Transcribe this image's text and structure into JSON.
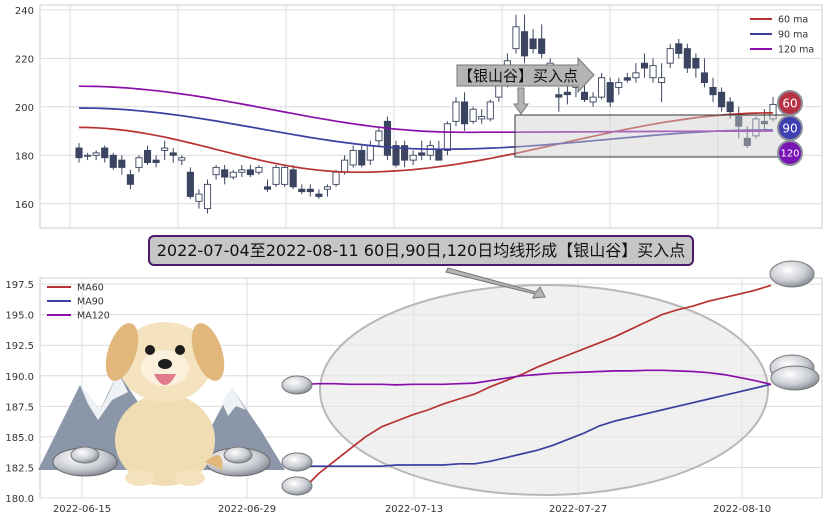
{
  "colors": {
    "ma60": "#b83232",
    "ma90": "#3a3fa0",
    "ma120": "#8a0fa8",
    "candle_up": "#ffffff",
    "candle_down": "#3b4460",
    "badge_ma60": "#b83246",
    "badge_ma90": "#3c3fb0",
    "badge_ma120": "#7a14b4"
  },
  "annotations": {
    "top_callout": "【银山谷】买入点",
    "title_banner": "2022-07-04至2022-08-11 60日,90日,120日均线形成【银山谷】买入点",
    "badges": [
      "60",
      "90",
      "120"
    ]
  },
  "chart_data": [
    {
      "type": "candlestick",
      "legend_position": "top-right",
      "grid": true,
      "ylim": [
        150,
        242
      ],
      "yticks": [
        160,
        180,
        200,
        220,
        240
      ],
      "legend": [
        "60 ma",
        "90 ma",
        "120 ma"
      ],
      "ohlc": [
        [
          183,
          185,
          177,
          179
        ],
        [
          180,
          181,
          178,
          180
        ],
        [
          180,
          182,
          178,
          181
        ],
        [
          183,
          184,
          177,
          179
        ],
        [
          180,
          181,
          174,
          175
        ],
        [
          178,
          180,
          172,
          175
        ],
        [
          172,
          174,
          166,
          168
        ],
        [
          175,
          180,
          173,
          179
        ],
        [
          182,
          184,
          176,
          177
        ],
        [
          178,
          180,
          175,
          177
        ],
        [
          182,
          186,
          178,
          183
        ],
        [
          181,
          183,
          177,
          180
        ],
        [
          178,
          180,
          176,
          179
        ],
        [
          173,
          175,
          162,
          163
        ],
        [
          161,
          166,
          158,
          164
        ],
        [
          158,
          170,
          156,
          168
        ],
        [
          172,
          176,
          170,
          175
        ],
        [
          174,
          176,
          168,
          171
        ],
        [
          171,
          174,
          170,
          173
        ],
        [
          173,
          176,
          171,
          174
        ],
        [
          174,
          176,
          171,
          172
        ],
        [
          173,
          176,
          172,
          175
        ],
        [
          167,
          170,
          165,
          166
        ],
        [
          168,
          176,
          167,
          175
        ],
        [
          168,
          176,
          167,
          175
        ],
        [
          174,
          176,
          166,
          167
        ],
        [
          166,
          168,
          164,
          165
        ],
        [
          166,
          168,
          163,
          165
        ],
        [
          164,
          166,
          162,
          163
        ],
        [
          166,
          168,
          163,
          167
        ],
        [
          168,
          174,
          167,
          173
        ],
        [
          173,
          180,
          172,
          178
        ],
        [
          176,
          184,
          175,
          182
        ],
        [
          182,
          184,
          175,
          176
        ],
        [
          178,
          186,
          176,
          184
        ],
        [
          186,
          192,
          184,
          190
        ],
        [
          194,
          196,
          178,
          180
        ],
        [
          184,
          186,
          175,
          176
        ],
        [
          184,
          186,
          175,
          178
        ],
        [
          178,
          182,
          176,
          180
        ],
        [
          181,
          186,
          178,
          180
        ],
        [
          180,
          186,
          178,
          184
        ],
        [
          182,
          186,
          178,
          178
        ],
        [
          182,
          194,
          180,
          193
        ],
        [
          194,
          204,
          192,
          202
        ],
        [
          202,
          206,
          190,
          193
        ],
        [
          194,
          200,
          193,
          199
        ],
        [
          195,
          199,
          193,
          196
        ],
        [
          195,
          203,
          194,
          202
        ],
        [
          204,
          214,
          202,
          211
        ],
        [
          210,
          222,
          208,
          219
        ],
        [
          224,
          238,
          222,
          233
        ],
        [
          231,
          238,
          218,
          221
        ],
        [
          228,
          232,
          222,
          224
        ],
        [
          228,
          234,
          220,
          222
        ],
        [
          214,
          220,
          210,
          218
        ],
        [
          205,
          208,
          198,
          204
        ],
        [
          206,
          210,
          201,
          205
        ],
        [
          208,
          212,
          204,
          209
        ],
        [
          206,
          210,
          202,
          203
        ],
        [
          202,
          206,
          200,
          204
        ],
        [
          204,
          214,
          203,
          212
        ],
        [
          210,
          212,
          200,
          202
        ],
        [
          208,
          212,
          205,
          210
        ],
        [
          212,
          214,
          210,
          211
        ],
        [
          212,
          218,
          210,
          214
        ],
        [
          218,
          222,
          212,
          216
        ],
        [
          212,
          220,
          210,
          217
        ],
        [
          210,
          218,
          202,
          212
        ],
        [
          218,
          226,
          216,
          224
        ],
        [
          226,
          228,
          220,
          222
        ],
        [
          224,
          226,
          214,
          216
        ],
        [
          220,
          222,
          212,
          216
        ],
        [
          214,
          220,
          208,
          210
        ],
        [
          208,
          212,
          202,
          205
        ],
        [
          206,
          208,
          198,
          200
        ],
        [
          202,
          204,
          195,
          198
        ],
        [
          196,
          200,
          187,
          192
        ],
        [
          187,
          192,
          183,
          184
        ],
        [
          188,
          196,
          187,
          195
        ],
        [
          194,
          199,
          190,
          193
        ],
        [
          195,
          204,
          194,
          201
        ]
      ]
    },
    {
      "type": "line",
      "legend_position": "top-left",
      "grid": true,
      "ylim": [
        180,
        198
      ],
      "yticks": [
        180.0,
        182.5,
        185.0,
        187.5,
        190.0,
        192.5,
        195.0,
        197.5
      ],
      "xticks": [
        "2022-06-15",
        "2022-06-29",
        "2022-07-13",
        "2022-07-27",
        "2022-08-10"
      ],
      "series": [
        {
          "name": "MA60",
          "values": [
            180.7,
            182.0,
            183.0,
            184.0,
            185.0,
            185.8,
            186.3,
            186.8,
            187.2,
            187.7,
            188.1,
            188.5,
            189.1,
            189.6,
            190.1,
            190.7,
            191.2,
            191.7,
            192.2,
            192.7,
            193.2,
            193.8,
            194.4,
            195.0,
            195.4,
            195.7,
            196.1,
            196.4,
            196.7,
            197.0,
            197.4
          ]
        },
        {
          "name": "MA90",
          "values": [
            182.6,
            182.6,
            182.6,
            182.6,
            182.6,
            182.6,
            182.7,
            182.7,
            182.7,
            182.7,
            182.8,
            182.8,
            183.0,
            183.3,
            183.6,
            183.9,
            184.3,
            184.8,
            185.3,
            185.9,
            186.3,
            186.6,
            186.9,
            187.2,
            187.5,
            187.8,
            188.1,
            188.4,
            188.7,
            189.0,
            189.3
          ]
        },
        {
          "name": "MA120",
          "values": [
            189.3,
            189.35,
            189.35,
            189.3,
            189.3,
            189.3,
            189.25,
            189.3,
            189.3,
            189.3,
            189.35,
            189.4,
            189.6,
            189.8,
            190.0,
            190.1,
            190.2,
            190.25,
            190.3,
            190.35,
            190.4,
            190.4,
            190.45,
            190.45,
            190.4,
            190.35,
            190.25,
            190.1,
            189.85,
            189.6,
            189.3
          ]
        }
      ]
    }
  ]
}
